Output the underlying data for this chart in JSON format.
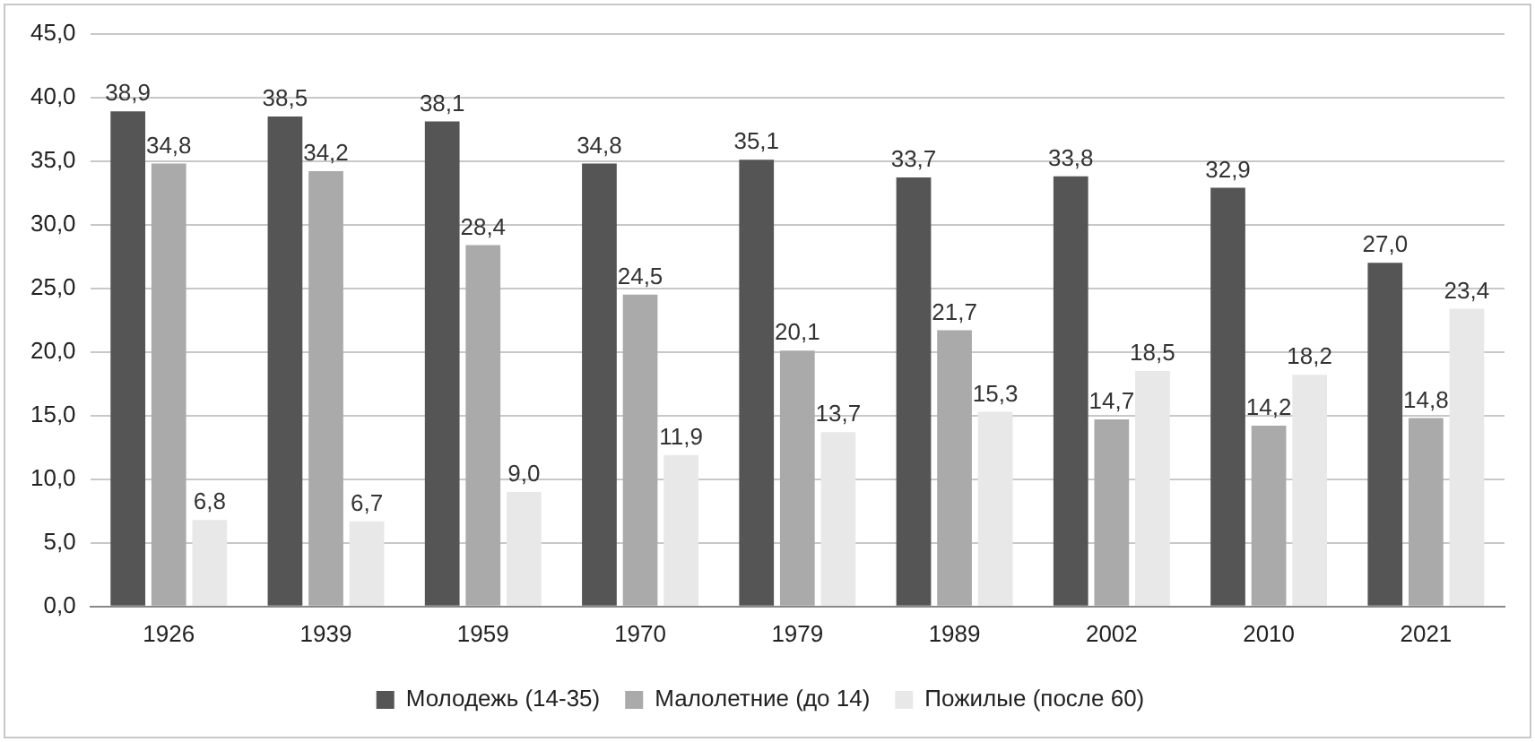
{
  "chart_data": {
    "type": "bar",
    "categories": [
      "1926",
      "1939",
      "1959",
      "1970",
      "1979",
      "1989",
      "2002",
      "2010",
      "2021"
    ],
    "series": [
      {
        "name": "Молодежь (14-35)",
        "color": "#555555",
        "values": [
          38.9,
          38.5,
          38.1,
          34.8,
          35.1,
          33.7,
          33.8,
          32.9,
          27.0
        ],
        "value_labels": [
          "38,9",
          "38,5",
          "38,1",
          "34,8",
          "35,1",
          "33,7",
          "33,8",
          "32,9",
          "27,0"
        ]
      },
      {
        "name": "Малолетние (до 14)",
        "color": "#aaaaaa",
        "values": [
          34.8,
          34.2,
          28.4,
          24.5,
          20.1,
          21.7,
          14.7,
          14.2,
          14.8
        ],
        "value_labels": [
          "34,8",
          "34,2",
          "28,4",
          "24,5",
          "20,1",
          "21,7",
          "14,7",
          "14,2",
          "14,8"
        ]
      },
      {
        "name": "Пожилые (после 60)",
        "color": "#e8e8e8",
        "values": [
          6.8,
          6.7,
          9.0,
          11.9,
          13.7,
          15.3,
          18.5,
          18.2,
          23.4
        ],
        "value_labels": [
          "6,8",
          "6,7",
          "9,0",
          "11,9",
          "13,7",
          "15,3",
          "18,5",
          "18,2",
          "23,4"
        ]
      }
    ],
    "ylim": [
      0,
      45
    ],
    "yticks": [
      {
        "value": 0,
        "label": "0,0"
      },
      {
        "value": 5,
        "label": "5,0"
      },
      {
        "value": 10,
        "label": "10,0"
      },
      {
        "value": 15,
        "label": "15,0"
      },
      {
        "value": 20,
        "label": "20,0"
      },
      {
        "value": 25,
        "label": "25,0"
      },
      {
        "value": 30,
        "label": "30,0"
      },
      {
        "value": 35,
        "label": "35,0"
      },
      {
        "value": 40,
        "label": "40,0"
      },
      {
        "value": 45,
        "label": "45,0"
      }
    ],
    "grid": "y",
    "legend": "bottom"
  }
}
